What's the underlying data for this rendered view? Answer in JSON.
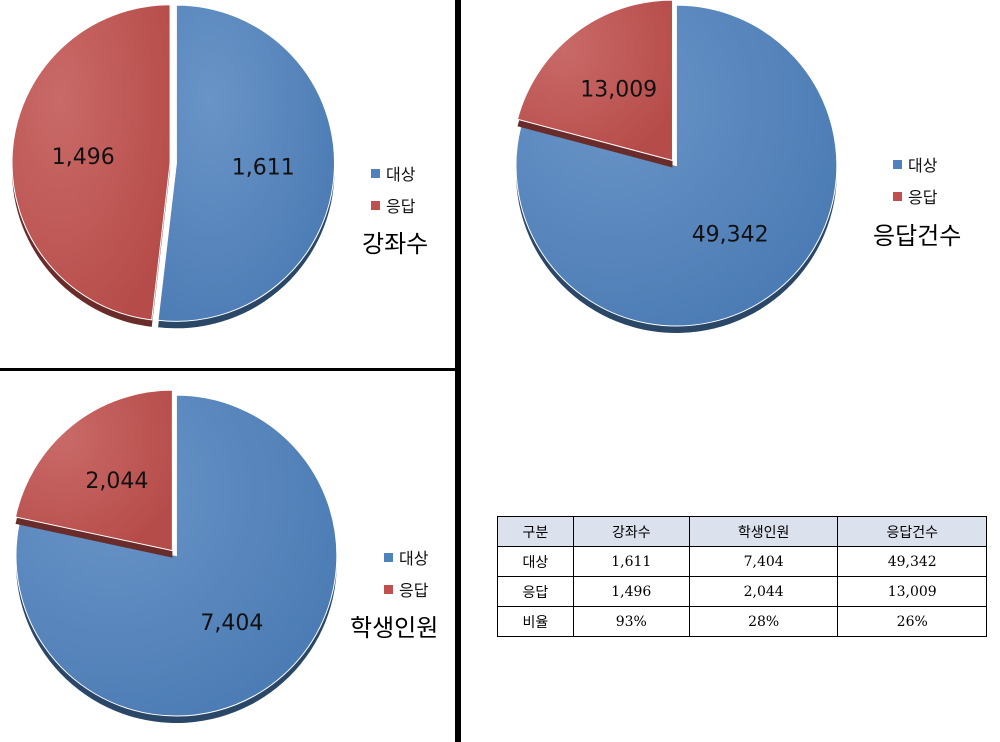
{
  "colors": {
    "target": "#4f81bd",
    "response": "#c0504d"
  },
  "legend": {
    "target": "대상",
    "response": "응답"
  },
  "chart_data": [
    {
      "type": "pie",
      "title": "강좌수",
      "categories": [
        "대상",
        "응답"
      ],
      "values": [
        1611,
        1496
      ],
      "value_labels": [
        "1,611",
        "1,496"
      ],
      "legend_position": "right"
    },
    {
      "type": "pie",
      "title": "응답건수",
      "categories": [
        "대상",
        "응답"
      ],
      "values": [
        49342,
        13009
      ],
      "value_labels": [
        "49,342",
        "13,009"
      ],
      "legend_position": "right"
    },
    {
      "type": "pie",
      "title": "학생인원",
      "categories": [
        "대상",
        "응답"
      ],
      "values": [
        7404,
        2044
      ],
      "value_labels": [
        "7,404",
        "2,044"
      ],
      "legend_position": "right"
    }
  ],
  "table": {
    "headers": [
      "구분",
      "강좌수",
      "학생인원",
      "응답건수"
    ],
    "rows": [
      [
        "대상",
        "1,611",
        "7,404",
        "49,342"
      ],
      [
        "응답",
        "1,496",
        "2,044",
        "13,009"
      ],
      [
        "비율",
        "93%",
        "28%",
        "26%"
      ]
    ]
  }
}
